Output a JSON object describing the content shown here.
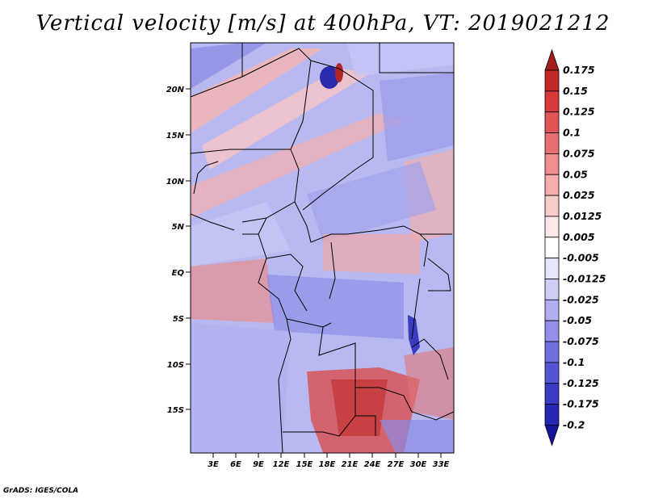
{
  "title": "Vertical velocity [m/s] at 400hPa, VT: 2019021212",
  "map": {
    "lat_ticks": [
      "20N",
      "15N",
      "10N",
      "5N",
      "EQ",
      "5S",
      "10S",
      "15S"
    ],
    "lon_ticks": [
      "3E",
      "6E",
      "9E",
      "12E",
      "15E",
      "18E",
      "21E",
      "24E",
      "27E",
      "30E",
      "33E"
    ],
    "region": "Central Africa"
  },
  "colorbar": {
    "labels": [
      "0.175",
      "0.15",
      "0.125",
      "0.1",
      "0.075",
      "0.05",
      "0.025",
      "0.0125",
      "0.005",
      "-0.005",
      "-0.0125",
      "-0.025",
      "-0.05",
      "-0.075",
      "-0.1",
      "-0.125",
      "-0.175",
      "-0.2"
    ],
    "colors": [
      "#a51c1c",
      "#c22828",
      "#d63a3a",
      "#e25555",
      "#e86f6f",
      "#ef8e8e",
      "#f5adad",
      "#f9cccc",
      "#fde7e7",
      "#ffffff",
      "#e7e7fb",
      "#cdcdf6",
      "#b0b0f0",
      "#9191ea",
      "#7070e0",
      "#5454d4",
      "#3a3ac4",
      "#2626b2",
      "#15159c"
    ]
  },
  "credit": "GrADS: IGES/COLA"
}
